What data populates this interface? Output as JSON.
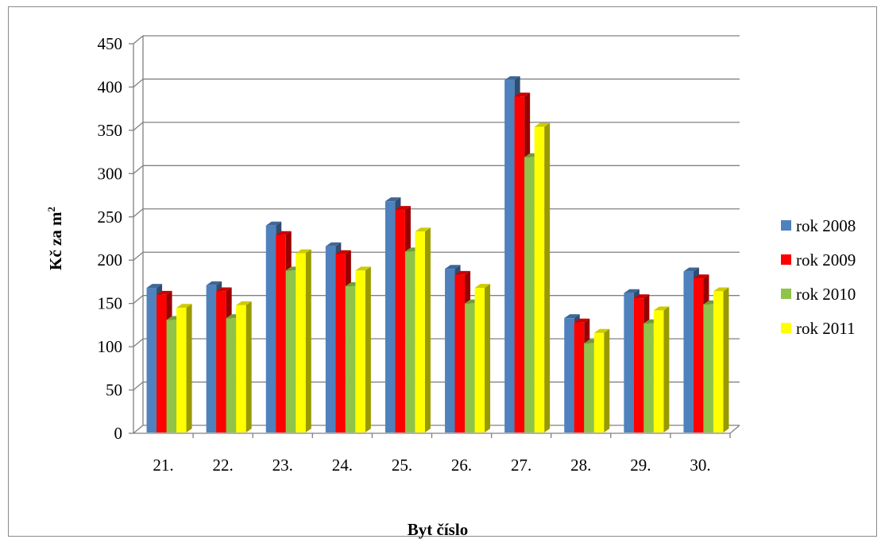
{
  "chart_data": {
    "type": "bar",
    "title": "",
    "xlabel": "Byt číslo",
    "ylabel_main": "Kč za m",
    "ylabel_sup": "2",
    "ylim": [
      0,
      450
    ],
    "yticks": [
      "0",
      "50",
      "100",
      "150",
      "200",
      "250",
      "300",
      "350",
      "400",
      "450"
    ],
    "grid": true,
    "legend_position": "right",
    "categories": [
      "21.",
      "22.",
      "23.",
      "24.",
      "25.",
      "26.",
      "27.",
      "28.",
      "29.",
      "30."
    ],
    "series": [
      {
        "name": "rok 2008",
        "color": "#4f81bd",
        "values": [
          168,
          171,
          240,
          216,
          268,
          190,
          408,
          133,
          162,
          187
        ]
      },
      {
        "name": "rok 2009",
        "color": "#ff0000",
        "values": [
          160,
          164,
          229,
          207,
          258,
          183,
          389,
          128,
          156,
          179
        ]
      },
      {
        "name": "rok 2010",
        "color": "#8fc34a",
        "values": [
          131,
          133,
          188,
          170,
          210,
          150,
          319,
          104,
          127,
          149
        ]
      },
      {
        "name": "rok 2011",
        "color": "#ffff00",
        "values": [
          145,
          148,
          208,
          188,
          233,
          168,
          354,
          116,
          142,
          164
        ]
      }
    ]
  }
}
